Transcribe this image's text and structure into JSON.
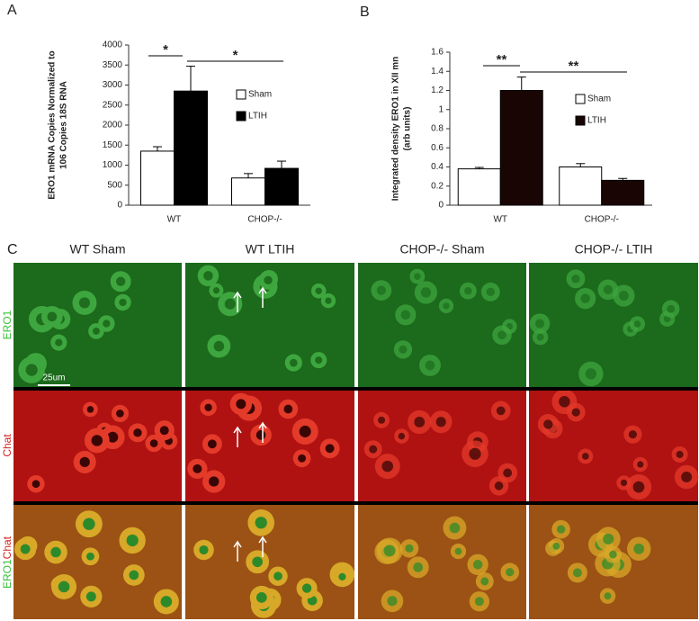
{
  "chart_data": [
    {
      "type": "bar",
      "panel": "A",
      "ylabel": [
        "ERO1 mRNA Copies Normalized to",
        "106 Copies 18S RNA"
      ],
      "categories": [
        "WT",
        "CHOP-/-"
      ],
      "series": [
        {
          "name": "Sham",
          "color": "#ffffff",
          "values": [
            1350,
            680
          ],
          "errors": [
            110,
            110
          ]
        },
        {
          "name": "LTIH",
          "color": "#000000",
          "values": [
            2850,
            920
          ],
          "errors": [
            620,
            180
          ]
        }
      ],
      "ylim": [
        0,
        4000
      ],
      "yticks": [
        0,
        500,
        1000,
        1500,
        2000,
        2500,
        3000,
        3500,
        4000
      ],
      "annotations": [
        "*",
        "*"
      ]
    },
    {
      "type": "bar",
      "panel": "B",
      "ylabel": [
        "Integrated density ERO1 in XII mn",
        "(arb units)"
      ],
      "categories": [
        "WT",
        "CHOP-/-"
      ],
      "series": [
        {
          "name": "Sham",
          "color": "#ffffff",
          "values": [
            0.38,
            0.4
          ],
          "errors": [
            0.015,
            0.035
          ]
        },
        {
          "name": "LTIH",
          "color": "#1a0505",
          "values": [
            1.2,
            0.26
          ],
          "errors": [
            0.14,
            0.02
          ]
        }
      ],
      "ylim": [
        0,
        1.6
      ],
      "yticks": [
        0,
        0.2,
        0.4,
        0.6,
        0.8,
        1,
        1.2,
        1.4,
        1.6
      ],
      "annotations": [
        "**",
        "**"
      ]
    }
  ],
  "panel_c": {
    "label": "C",
    "columns": [
      "WT Sham",
      "WT LTIH",
      "CHOP-/- Sham",
      "CHOP-/-  LTIH"
    ],
    "row_labels": [
      "ERO1",
      "Chat"
    ],
    "scale_bar": "25um"
  }
}
